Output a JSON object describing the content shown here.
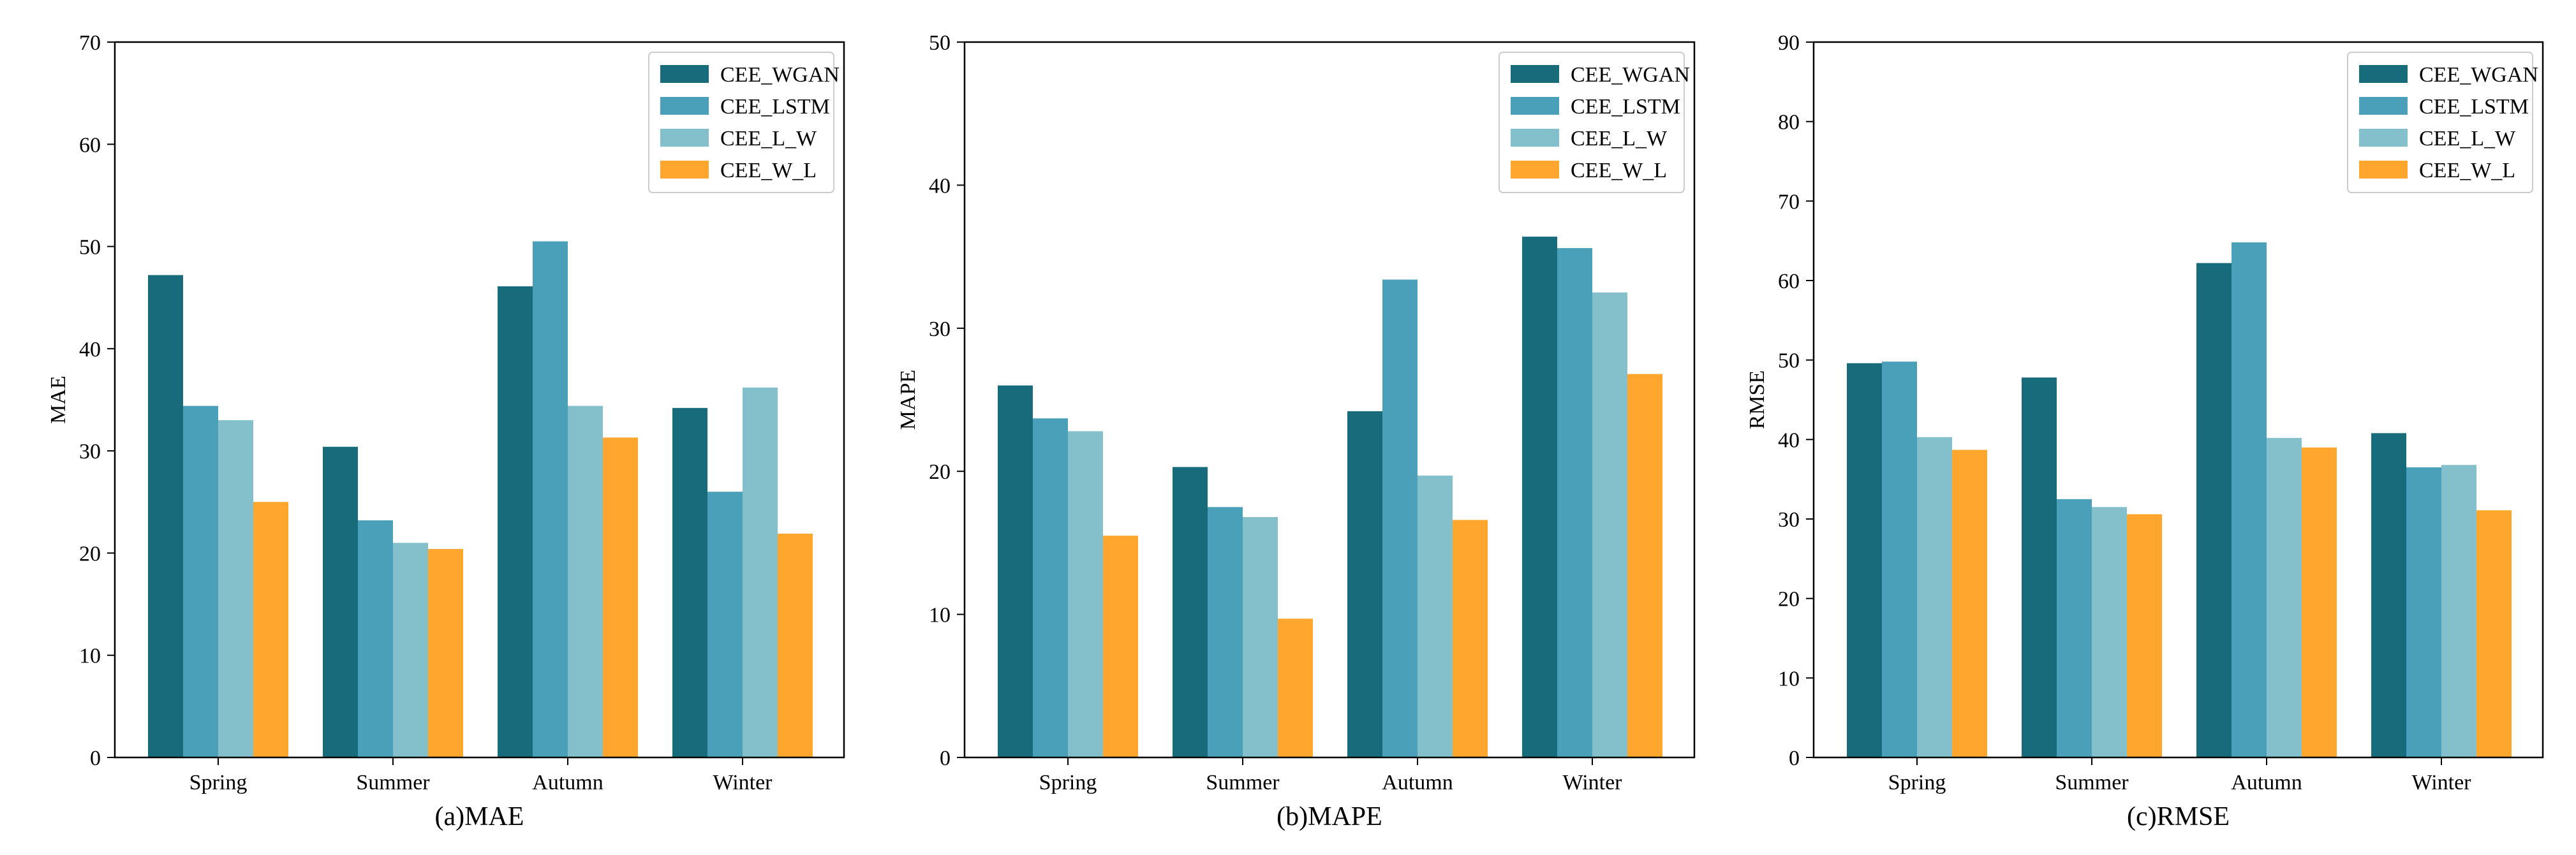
{
  "chart_data": [
    {
      "type": "bar",
      "title": "",
      "caption": "(a)MAE",
      "xlabel": "",
      "ylabel": "MAE",
      "ylim": [
        0,
        70
      ],
      "yticks": [
        0,
        10,
        20,
        30,
        40,
        50,
        60,
        70
      ],
      "categories": [
        "Spring",
        "Summer",
        "Autumn",
        "Winter"
      ],
      "legend_position": "top-right",
      "grid": false,
      "series": [
        {
          "name": "CEE_WGAN",
          "color": "#176B7B",
          "values": [
            47.2,
            30.4,
            46.1,
            34.2
          ]
        },
        {
          "name": "CEE_LSTM",
          "color": "#4AA0B8",
          "values": [
            34.4,
            23.2,
            50.5,
            26.0
          ]
        },
        {
          "name": "CEE_L_W",
          "color": "#83C0CC",
          "values": [
            33.0,
            21.0,
            34.4,
            36.2
          ]
        },
        {
          "name": "CEE_W_L",
          "color": "#FFA62F",
          "values": [
            25.0,
            20.4,
            31.3,
            21.9
          ]
        }
      ]
    },
    {
      "type": "bar",
      "title": "",
      "caption": "(b)MAPE",
      "xlabel": "",
      "ylabel": "MAPE",
      "ylim": [
        0,
        50
      ],
      "yticks": [
        0,
        10,
        20,
        30,
        40,
        50
      ],
      "categories": [
        "Spring",
        "Summer",
        "Autumn",
        "Winter"
      ],
      "legend_position": "top-right",
      "grid": false,
      "series": [
        {
          "name": "CEE_WGAN",
          "color": "#176B7B",
          "values": [
            26.0,
            20.3,
            24.2,
            36.4
          ]
        },
        {
          "name": "CEE_LSTM",
          "color": "#4AA0B8",
          "values": [
            23.7,
            17.5,
            33.4,
            35.6
          ]
        },
        {
          "name": "CEE_L_W",
          "color": "#83C0CC",
          "values": [
            22.8,
            16.8,
            19.7,
            32.5
          ]
        },
        {
          "name": "CEE_W_L",
          "color": "#FFA62F",
          "values": [
            15.5,
            9.7,
            16.6,
            26.8
          ]
        }
      ]
    },
    {
      "type": "bar",
      "title": "",
      "caption": "(c)RMSE",
      "xlabel": "",
      "ylabel": "RMSE",
      "ylim": [
        0,
        90
      ],
      "yticks": [
        0,
        10,
        20,
        30,
        40,
        50,
        60,
        70,
        80,
        90
      ],
      "categories": [
        "Spring",
        "Summer",
        "Autumn",
        "Winter"
      ],
      "legend_position": "top-right",
      "grid": false,
      "series": [
        {
          "name": "CEE_WGAN",
          "color": "#176B7B",
          "values": [
            49.6,
            47.8,
            62.2,
            40.8
          ]
        },
        {
          "name": "CEE_LSTM",
          "color": "#4AA0B8",
          "values": [
            49.8,
            32.5,
            64.8,
            36.5
          ]
        },
        {
          "name": "CEE_L_W",
          "color": "#83C0CC",
          "values": [
            40.3,
            31.5,
            40.2,
            36.8
          ]
        },
        {
          "name": "CEE_W_L",
          "color": "#FFA62F",
          "values": [
            38.7,
            30.6,
            39.0,
            31.1
          ]
        }
      ]
    }
  ]
}
